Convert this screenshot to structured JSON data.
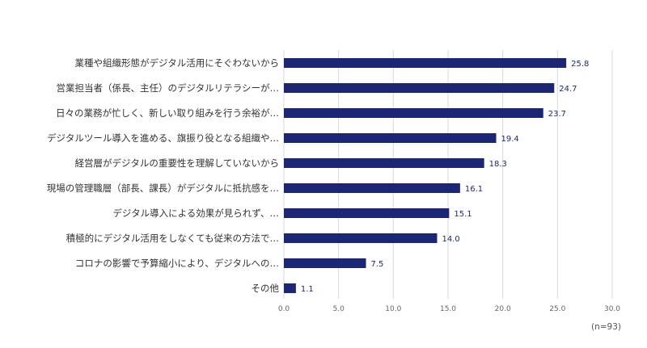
{
  "chart_data": {
    "type": "bar",
    "orientation": "horizontal",
    "categories": [
      "業種や組織形態がデジタル活用にそぐわないから",
      "営業担当者（係長、主任）のデジタルリテラシーが…",
      "日々の業務が忙しく、新しい取り組みを行う余裕が…",
      "デジタルツール導入を進める、旗振り役となる組織や…",
      "経営層がデジタルの重要性を理解していないから",
      "現場の管理職層（部長、課長）がデジタルに抵抗感を…",
      "デジタル導入による効果が見られず、…",
      "積極的にデジタル活用をしなくても従来の方法で…",
      "コロナの影響で予算縮小により、デジタルへの…",
      "その他"
    ],
    "values": [
      25.8,
      24.7,
      23.7,
      19.4,
      18.3,
      16.1,
      15.1,
      14.0,
      7.5,
      1.1
    ],
    "value_labels": [
      "25.8",
      "24.7",
      "23.7",
      "19.4",
      "18.3",
      "16.1",
      "15.1",
      "14.0",
      "7.5",
      "1.1"
    ],
    "xlim": [
      0,
      30
    ],
    "xticks": [
      "0.0",
      "5.0",
      "10.0",
      "15.0",
      "20.0",
      "25.0",
      "30.0"
    ],
    "grid": true,
    "bar_color": "#1b2674",
    "note": "(n=93)"
  }
}
